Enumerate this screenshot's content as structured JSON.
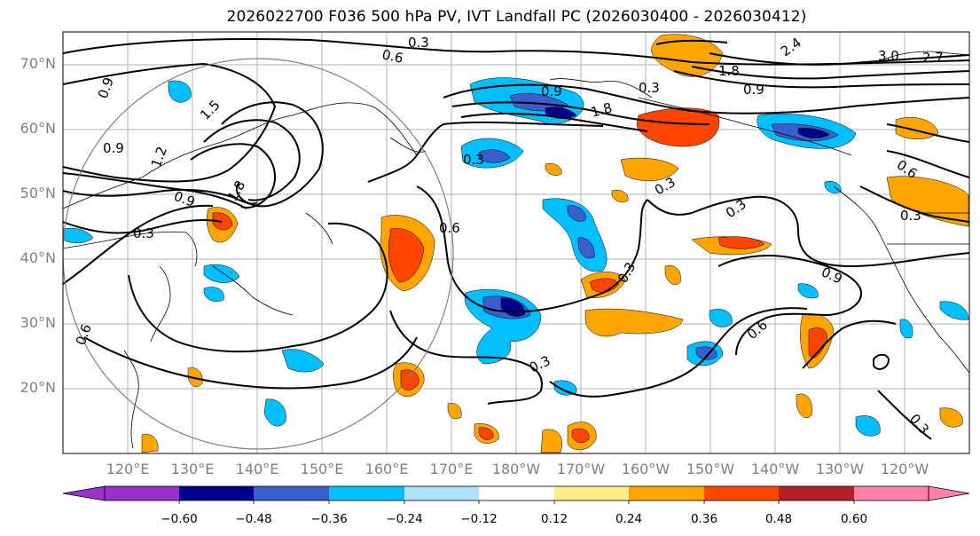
{
  "title": "2026022700 F036 500 hPa PV, IVT Landfall PC (2026030400 - 2026030412)",
  "map": {
    "lat_ticks": [
      "20°N",
      "30°N",
      "40°N",
      "50°N",
      "60°N",
      "70°N"
    ],
    "lon_ticks": [
      "120°E",
      "130°E",
      "140°E",
      "150°E",
      "160°E",
      "170°E",
      "180°W",
      "170°W",
      "160°W",
      "150°W",
      "140°W",
      "130°W",
      "120°W"
    ],
    "contour_labels": [
      "0.3",
      "0.6",
      "0.9",
      "1.2",
      "1.5",
      "1.8",
      "2.4",
      "3.0",
      "2.7"
    ],
    "shading_colors": [
      "#9932cc",
      "#00008b",
      "#3a5fcd",
      "#00bfff",
      "#b0e2ff",
      "#ffffff",
      "#ffec8b",
      "#ffa500",
      "#ff4500",
      "#b22222",
      "#ff82ab"
    ]
  },
  "colorbar": {
    "ticks": [
      "−0.60",
      "−0.48",
      "−0.36",
      "−0.24",
      "−0.12",
      "0.12",
      "0.24",
      "0.36",
      "0.48",
      "0.60"
    ],
    "colors": [
      "#9932cc",
      "#00008b",
      "#3a5fcd",
      "#00bfff",
      "#b0e2ff",
      "#ffffff",
      "#ffec8b",
      "#ffa500",
      "#ff4500",
      "#b22222",
      "#ff82ab"
    ]
  }
}
